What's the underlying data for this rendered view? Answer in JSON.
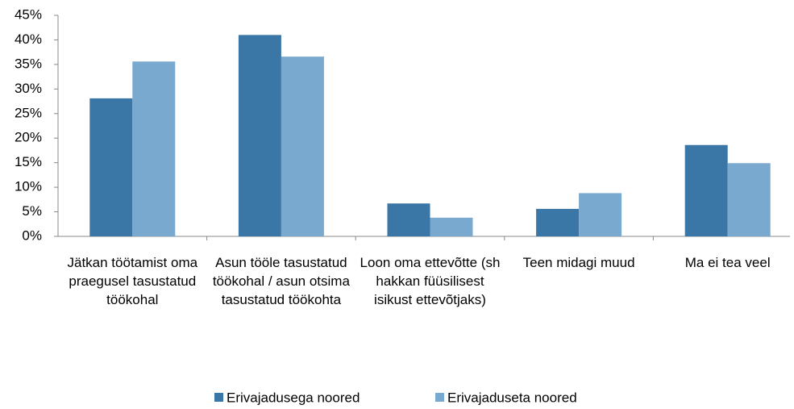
{
  "chart_data": {
    "type": "bar",
    "categories": [
      "Jätkan töötamist oma praegusel tasustatud töökohal",
      "Asun tööle tasustatud töökohal / asun otsima tasustatud töökohta",
      "Loon oma ettevõtte (sh hakkan füüsilisest isikust ettevõtjaks)",
      "Teen midagi muud",
      "Ma ei tea veel"
    ],
    "series": [
      {
        "name": "Erivajadusega noored",
        "color": "#3a76a6",
        "values": [
          28.1,
          41.0,
          6.7,
          5.6,
          18.6
        ]
      },
      {
        "name": "Erivajaduseta noored",
        "color": "#7aa9d0",
        "values": [
          35.6,
          36.6,
          3.8,
          8.8,
          14.9
        ]
      }
    ],
    "ylim": [
      0,
      45
    ],
    "yticks": [
      {
        "value": 0,
        "label": "0%"
      },
      {
        "value": 5,
        "label": "5%"
      },
      {
        "value": 10,
        "label": "10%"
      },
      {
        "value": 15,
        "label": "15%"
      },
      {
        "value": 20,
        "label": "20%"
      },
      {
        "value": 25,
        "label": "25%"
      },
      {
        "value": 30,
        "label": "30%"
      },
      {
        "value": 35,
        "label": "35%"
      },
      {
        "value": 40,
        "label": "40%"
      },
      {
        "value": 45,
        "label": "45%"
      }
    ],
    "grid": false,
    "legend": "bottom"
  }
}
